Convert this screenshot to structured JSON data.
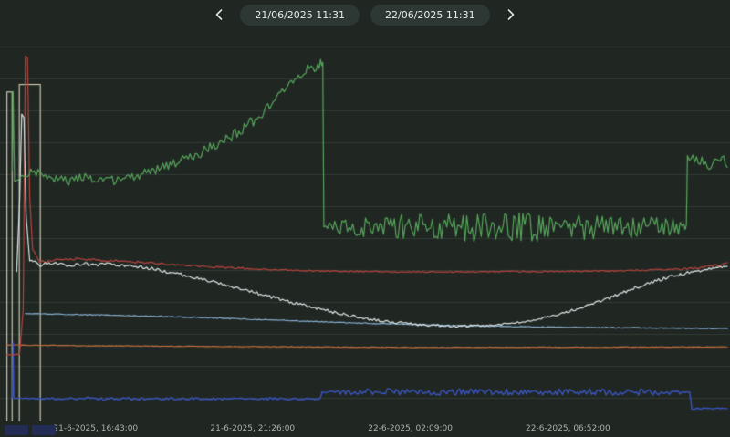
{
  "toolbar": {
    "start_date": "21/06/2025 11:31",
    "end_date": "22/06/2025 11:31"
  },
  "legend": {
    "chips": [
      {
        "label": "",
        "color": "#232c55"
      },
      {
        "label": "",
        "color": "#232c55"
      }
    ]
  },
  "chart_data": {
    "type": "line",
    "title": "",
    "x_range": [
      "21/06/2025 11:31",
      "22/06/2025 11:31"
    ],
    "y_axis": {
      "visible": false,
      "units": "percent-of-plot-height",
      "range": [
        0,
        100
      ]
    },
    "grid": {
      "horizontal": true,
      "vertical": false,
      "color": "rgba(135,150,142,0.18)"
    },
    "x_ticks": [
      {
        "label": "21-6-2025, 16:43:00",
        "x": 0.131
      },
      {
        "label": "21-6-2025, 21:26:00",
        "x": 0.346
      },
      {
        "label": "22-6-2025, 02:09:00",
        "x": 0.562
      },
      {
        "label": "22-6-2025, 06:52:00",
        "x": 0.778
      }
    ],
    "event_bars": [
      {
        "x0": 0.004,
        "x1": 0.011,
        "u0": 0,
        "u1": 88,
        "color": "#e8e4c6"
      },
      {
        "x0": 0.021,
        "x1": 0.05,
        "u0": 0,
        "u1": 90,
        "color": "#e8e4c6"
      }
    ],
    "series": [
      {
        "name": "light-blue",
        "color": "#86aed0",
        "width": 1.2,
        "points": [
          [
            0.03,
            28.8,
            0.1
          ],
          [
            0.08,
            28.6,
            0.12
          ],
          [
            0.14,
            28.4,
            0.12
          ],
          [
            0.2,
            28.1,
            0.12
          ],
          [
            0.26,
            27.8,
            0.12
          ],
          [
            0.32,
            27.4,
            0.12
          ],
          [
            0.38,
            27.0,
            0.12
          ],
          [
            0.44,
            26.6,
            0.12
          ],
          [
            0.5,
            26.2,
            0.12
          ],
          [
            0.56,
            25.9,
            0.12
          ],
          [
            0.62,
            25.6,
            0.12
          ],
          [
            0.68,
            25.4,
            0.12
          ],
          [
            0.74,
            25.2,
            0.12
          ],
          [
            0.8,
            25.1,
            0.12
          ],
          [
            0.86,
            25.0,
            0.12
          ],
          [
            0.92,
            24.9,
            0.12
          ],
          [
            1.0,
            24.8,
            0.1
          ]
        ]
      },
      {
        "name": "orange",
        "color": "#c2703f",
        "width": 1.2,
        "points": [
          [
            0.004,
            20.4,
            0.08
          ],
          [
            0.1,
            20.2,
            0.08
          ],
          [
            0.2,
            20.1,
            0.08
          ],
          [
            0.3,
            20.0,
            0.08
          ],
          [
            0.4,
            19.9,
            0.08
          ],
          [
            0.5,
            19.8,
            0.08
          ],
          [
            0.6,
            19.75,
            0.08
          ],
          [
            0.7,
            19.8,
            0.08
          ],
          [
            0.8,
            19.8,
            0.08
          ],
          [
            0.9,
            19.85,
            0.08
          ],
          [
            1.0,
            19.9,
            0.05
          ]
        ]
      },
      {
        "name": "blue",
        "color": "#3b55c0",
        "width": 1.4,
        "points": [
          [
            0.012,
            6.2,
            0
          ],
          [
            0.013,
            21,
            0
          ],
          [
            0.014,
            6.2,
            0
          ],
          [
            0.05,
            6.1,
            0.35
          ],
          [
            0.08,
            6.0,
            0.35
          ],
          [
            0.11,
            6.15,
            0.35
          ],
          [
            0.14,
            6.0,
            0.35
          ],
          [
            0.17,
            6.1,
            0.35
          ],
          [
            0.2,
            6.0,
            0.35
          ],
          [
            0.23,
            6.1,
            0.35
          ],
          [
            0.26,
            6.05,
            0.35
          ],
          [
            0.29,
            6.1,
            0.35
          ],
          [
            0.32,
            6.0,
            0.35
          ],
          [
            0.35,
            6.1,
            0.35
          ],
          [
            0.38,
            6.0,
            0.35
          ],
          [
            0.41,
            6.05,
            0.35
          ],
          [
            0.437,
            6.05,
            0.3
          ],
          [
            0.44,
            7.9,
            0.3
          ],
          [
            0.46,
            7.9,
            0.8
          ],
          [
            0.49,
            7.8,
            0.8
          ],
          [
            0.52,
            7.9,
            0.85
          ],
          [
            0.55,
            7.85,
            0.85
          ],
          [
            0.58,
            7.9,
            0.85
          ],
          [
            0.61,
            7.8,
            0.85
          ],
          [
            0.64,
            7.9,
            0.85
          ],
          [
            0.67,
            7.85,
            0.85
          ],
          [
            0.7,
            7.9,
            0.85
          ],
          [
            0.73,
            7.8,
            0.85
          ],
          [
            0.76,
            7.9,
            0.85
          ],
          [
            0.79,
            7.85,
            0.85
          ],
          [
            0.82,
            7.9,
            0.85
          ],
          [
            0.85,
            7.8,
            0.85
          ],
          [
            0.88,
            7.9,
            0.85
          ],
          [
            0.91,
            7.85,
            0.8
          ],
          [
            0.935,
            7.9,
            0.6
          ],
          [
            0.948,
            7.8,
            0.4
          ],
          [
            0.951,
            3.4,
            0.2
          ],
          [
            0.97,
            3.5,
            0.25
          ],
          [
            0.99,
            3.5,
            0.2
          ],
          [
            1.0,
            3.5,
            0.15
          ]
        ]
      },
      {
        "name": "red",
        "color": "#b9433c",
        "width": 1.2,
        "points": [
          [
            0.004,
            17.8,
            0
          ],
          [
            0.022,
            17.8,
            0.2
          ],
          [
            0.027,
            30,
            0
          ],
          [
            0.03,
            97.5,
            0
          ],
          [
            0.033,
            97,
            0
          ],
          [
            0.036,
            60,
            0
          ],
          [
            0.04,
            46,
            0.3
          ],
          [
            0.05,
            42.5,
            0.3
          ],
          [
            0.065,
            42.8,
            0.3
          ],
          [
            0.08,
            43.2,
            0.3
          ],
          [
            0.1,
            43.3,
            0.3
          ],
          [
            0.13,
            43.0,
            0.3
          ],
          [
            0.16,
            42.8,
            0.3
          ],
          [
            0.2,
            42.3,
            0.3
          ],
          [
            0.24,
            41.8,
            0.25
          ],
          [
            0.28,
            41.3,
            0.25
          ],
          [
            0.32,
            41.0,
            0.25
          ],
          [
            0.36,
            40.6,
            0.2
          ],
          [
            0.4,
            40.3,
            0.2
          ],
          [
            0.45,
            40.1,
            0.2
          ],
          [
            0.5,
            40.0,
            0.2
          ],
          [
            0.55,
            39.9,
            0.2
          ],
          [
            0.6,
            39.9,
            0.2
          ],
          [
            0.65,
            39.9,
            0.2
          ],
          [
            0.7,
            40.0,
            0.2
          ],
          [
            0.75,
            40.0,
            0.2
          ],
          [
            0.8,
            40.1,
            0.2
          ],
          [
            0.85,
            40.2,
            0.2
          ],
          [
            0.9,
            40.4,
            0.2
          ],
          [
            0.94,
            40.7,
            0.25
          ],
          [
            0.97,
            41.2,
            0.3
          ],
          [
            0.99,
            41.8,
            0.3
          ],
          [
            1.0,
            42.2,
            0.2
          ]
        ]
      },
      {
        "name": "white",
        "color": "#dde6e6",
        "width": 1.2,
        "points": [
          [
            0.018,
            40,
            0
          ],
          [
            0.022,
            58,
            0
          ],
          [
            0.025,
            82,
            0
          ],
          [
            0.028,
            81,
            0
          ],
          [
            0.031,
            55,
            0
          ],
          [
            0.036,
            43,
            0.4
          ],
          [
            0.05,
            41.8,
            0.45
          ],
          [
            0.07,
            42.2,
            0.45
          ],
          [
            0.09,
            41.6,
            0.45
          ],
          [
            0.11,
            42.0,
            0.45
          ],
          [
            0.13,
            41.8,
            0.45
          ],
          [
            0.15,
            42.0,
            0.45
          ],
          [
            0.17,
            41.6,
            0.45
          ],
          [
            0.19,
            41.2,
            0.45
          ],
          [
            0.21,
            40.6,
            0.45
          ],
          [
            0.23,
            39.8,
            0.45
          ],
          [
            0.25,
            39.0,
            0.45
          ],
          [
            0.27,
            38.2,
            0.4
          ],
          [
            0.29,
            37.2,
            0.4
          ],
          [
            0.31,
            36.2,
            0.4
          ],
          [
            0.33,
            35.2,
            0.4
          ],
          [
            0.35,
            34.2,
            0.4
          ],
          [
            0.37,
            33.2,
            0.4
          ],
          [
            0.39,
            32.2,
            0.4
          ],
          [
            0.41,
            31.2,
            0.4
          ],
          [
            0.43,
            30.4,
            0.4
          ],
          [
            0.45,
            29.4,
            0.4
          ],
          [
            0.47,
            28.6,
            0.4
          ],
          [
            0.49,
            27.8,
            0.4
          ],
          [
            0.51,
            27.2,
            0.35
          ],
          [
            0.53,
            26.6,
            0.35
          ],
          [
            0.55,
            26.2,
            0.35
          ],
          [
            0.57,
            25.9,
            0.35
          ],
          [
            0.59,
            25.7,
            0.35
          ],
          [
            0.61,
            25.5,
            0.3
          ],
          [
            0.63,
            25.4,
            0.3
          ],
          [
            0.65,
            25.5,
            0.3
          ],
          [
            0.67,
            25.7,
            0.3
          ],
          [
            0.69,
            26.0,
            0.3
          ],
          [
            0.71,
            26.4,
            0.3
          ],
          [
            0.73,
            27.0,
            0.35
          ],
          [
            0.75,
            27.8,
            0.35
          ],
          [
            0.77,
            28.7,
            0.4
          ],
          [
            0.79,
            29.8,
            0.4
          ],
          [
            0.81,
            31.0,
            0.4
          ],
          [
            0.83,
            32.4,
            0.4
          ],
          [
            0.85,
            33.9,
            0.4
          ],
          [
            0.87,
            35.4,
            0.4
          ],
          [
            0.89,
            36.8,
            0.4
          ],
          [
            0.91,
            38.0,
            0.4
          ],
          [
            0.93,
            39.0,
            0.4
          ],
          [
            0.95,
            39.8,
            0.4
          ],
          [
            0.97,
            40.5,
            0.35
          ],
          [
            0.99,
            41.2,
            0.3
          ],
          [
            1.0,
            41.5,
            0.2
          ]
        ]
      },
      {
        "name": "green-noisy",
        "color": "#57a65b",
        "width": 1.2,
        "points": [
          [
            0.012,
            67,
            0
          ],
          [
            0.013,
            88,
            0
          ],
          [
            0.015,
            64,
            0
          ],
          [
            0.04,
            67,
            1.3
          ],
          [
            0.055,
            65.5,
            1.3
          ],
          [
            0.07,
            64.5,
            1.3
          ],
          [
            0.09,
            64,
            1.3
          ],
          [
            0.11,
            65,
            1.3
          ],
          [
            0.13,
            63.8,
            1.3
          ],
          [
            0.145,
            64.8,
            1.3
          ],
          [
            0.16,
            63.9,
            1.3
          ],
          [
            0.175,
            65,
            1.3
          ],
          [
            0.19,
            66,
            1.3
          ],
          [
            0.21,
            67,
            1.3
          ],
          [
            0.23,
            68.5,
            1.3
          ],
          [
            0.25,
            70,
            1.4
          ],
          [
            0.27,
            71.5,
            1.4
          ],
          [
            0.29,
            73.5,
            1.5
          ],
          [
            0.31,
            75.5,
            1.5
          ],
          [
            0.33,
            78,
            1.5
          ],
          [
            0.35,
            81,
            1.5
          ],
          [
            0.37,
            84.5,
            1.5
          ],
          [
            0.39,
            88.5,
            1.5
          ],
          [
            0.405,
            91.5,
            1.3
          ],
          [
            0.415,
            93.5,
            1.2
          ],
          [
            0.425,
            95,
            1.2
          ],
          [
            0.432,
            94,
            1.2
          ],
          [
            0.438,
            95.8,
            1.0
          ],
          [
            0.441,
            95.5,
            0.5
          ],
          [
            0.4425,
            51.5,
            0.5
          ],
          [
            0.455,
            51.5,
            2.2
          ],
          [
            0.48,
            52,
            2.5
          ],
          [
            0.51,
            51.5,
            2.8
          ],
          [
            0.54,
            52,
            3.2
          ],
          [
            0.57,
            51.8,
            3.5
          ],
          [
            0.6,
            52.2,
            3.8
          ],
          [
            0.63,
            51.6,
            4.0
          ],
          [
            0.66,
            52.0,
            4.2
          ],
          [
            0.69,
            51.5,
            4.0
          ],
          [
            0.72,
            52,
            3.8
          ],
          [
            0.75,
            51.6,
            3.6
          ],
          [
            0.78,
            52,
            3.4
          ],
          [
            0.81,
            51.6,
            3.2
          ],
          [
            0.84,
            52,
            3.0
          ],
          [
            0.87,
            51.7,
            2.8
          ],
          [
            0.9,
            52,
            2.6
          ],
          [
            0.92,
            51.8,
            2.4
          ],
          [
            0.94,
            51.8,
            2.0
          ],
          [
            0.9435,
            52,
            1.0
          ],
          [
            0.945,
            70.5,
            0.8
          ],
          [
            0.955,
            70,
            1.5
          ],
          [
            0.965,
            69,
            1.6
          ],
          [
            0.975,
            68.3,
            1.6
          ],
          [
            0.985,
            69.5,
            1.6
          ],
          [
            0.995,
            69.5,
            1.4
          ],
          [
            1.0,
            68.5,
            1.0
          ]
        ]
      }
    ]
  }
}
